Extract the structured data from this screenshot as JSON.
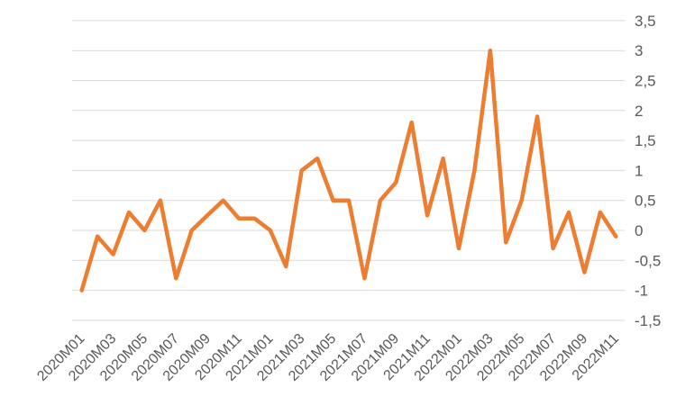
{
  "chart_data": {
    "type": "line",
    "title": "",
    "categories": [
      "2020M01",
      "2020M02",
      "2020M03",
      "2020M04",
      "2020M05",
      "2020M06",
      "2020M07",
      "2020M08",
      "2020M09",
      "2020M10",
      "2020M11",
      "2020M12",
      "2021M01",
      "2021M02",
      "2021M03",
      "2021M04",
      "2021M05",
      "2021M06",
      "2021M07",
      "2021M08",
      "2021M09",
      "2021M10",
      "2021M11",
      "2021M12",
      "2022M01",
      "2022M02",
      "2022M03",
      "2022M04",
      "2022M05",
      "2022M06",
      "2022M07",
      "2022M08",
      "2022M09",
      "2022M10",
      "2022M11"
    ],
    "series": [
      {
        "name": "monthly-change",
        "values": [
          -1.0,
          -0.1,
          -0.4,
          0.3,
          0.0,
          0.5,
          -0.8,
          0.0,
          0.25,
          0.5,
          0.2,
          0.2,
          0.0,
          -0.6,
          1.0,
          1.2,
          0.5,
          0.5,
          -0.8,
          0.5,
          0.8,
          1.8,
          0.25,
          1.2,
          -0.3,
          1.0,
          3.0,
          -0.2,
          0.5,
          1.9,
          -0.3,
          0.3,
          -0.7,
          0.3,
          -0.1
        ]
      }
    ],
    "x_tick_labels": [
      "2020M01",
      "2020M03",
      "2020M05",
      "2020M07",
      "2020M09",
      "2020M11",
      "2021M01",
      "2021M03",
      "2021M05",
      "2021M07",
      "2021M09",
      "2021M11",
      "2022M01",
      "2022M03",
      "2022M05",
      "2022M07",
      "2022M09",
      "2022M11"
    ],
    "x_label_every": 2,
    "y_tick_values": [
      3.5,
      3,
      2.5,
      2,
      1.5,
      1,
      0.5,
      0,
      -0.5,
      -1,
      -1.5
    ],
    "y_tick_labels": [
      "3,5",
      "3",
      "2,5",
      "2",
      "1,5",
      "1",
      "0,5",
      "0",
      "-0,5",
      "-1",
      "-1,5"
    ],
    "ylim": [
      -1.5,
      3.5
    ],
    "y_axis_side": "right",
    "decimal_separator": ",",
    "grid": "horizontal",
    "legend": "none",
    "colors": {
      "series": "#ED7D31",
      "gridline": "#D9D9D9",
      "axis_text": "#595959",
      "background": "#FFFFFF"
    }
  }
}
